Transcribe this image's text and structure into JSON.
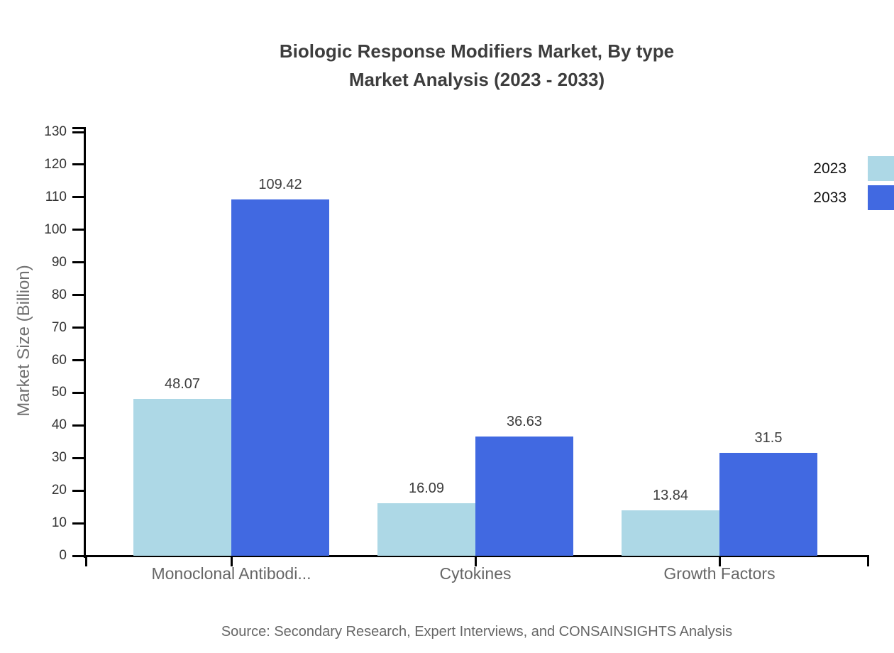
{
  "title": {
    "line1": "Biologic Response Modifiers Market, By type",
    "line2": "Market Analysis (2023 - 2033)"
  },
  "source": "Source: Secondary Research, Expert Interviews, and CONSAINSIGHTS Analysis",
  "chart_data": {
    "type": "bar",
    "categories": [
      "Monoclonal Antibodi...",
      "Cytokines",
      "Growth Factors"
    ],
    "series": [
      {
        "name": "2023",
        "color": "#ADD8E6",
        "values": [
          48.07,
          16.09,
          13.84
        ]
      },
      {
        "name": "2033",
        "color": "#4169E1",
        "values": [
          109.42,
          36.63,
          31.5
        ]
      }
    ],
    "title": "Biologic Response Modifiers Market, By type Market Analysis (2023 - 2033)",
    "xlabel": "",
    "ylabel": "Market Size (Billion)",
    "ylim": [
      0,
      130
    ],
    "yticks": [
      0,
      10,
      20,
      30,
      40,
      50,
      60,
      70,
      80,
      90,
      100,
      110,
      120,
      130
    ],
    "grid": false,
    "legend_position": "top-right",
    "value_labels_shown": true,
    "axis_color": "#000000"
  }
}
